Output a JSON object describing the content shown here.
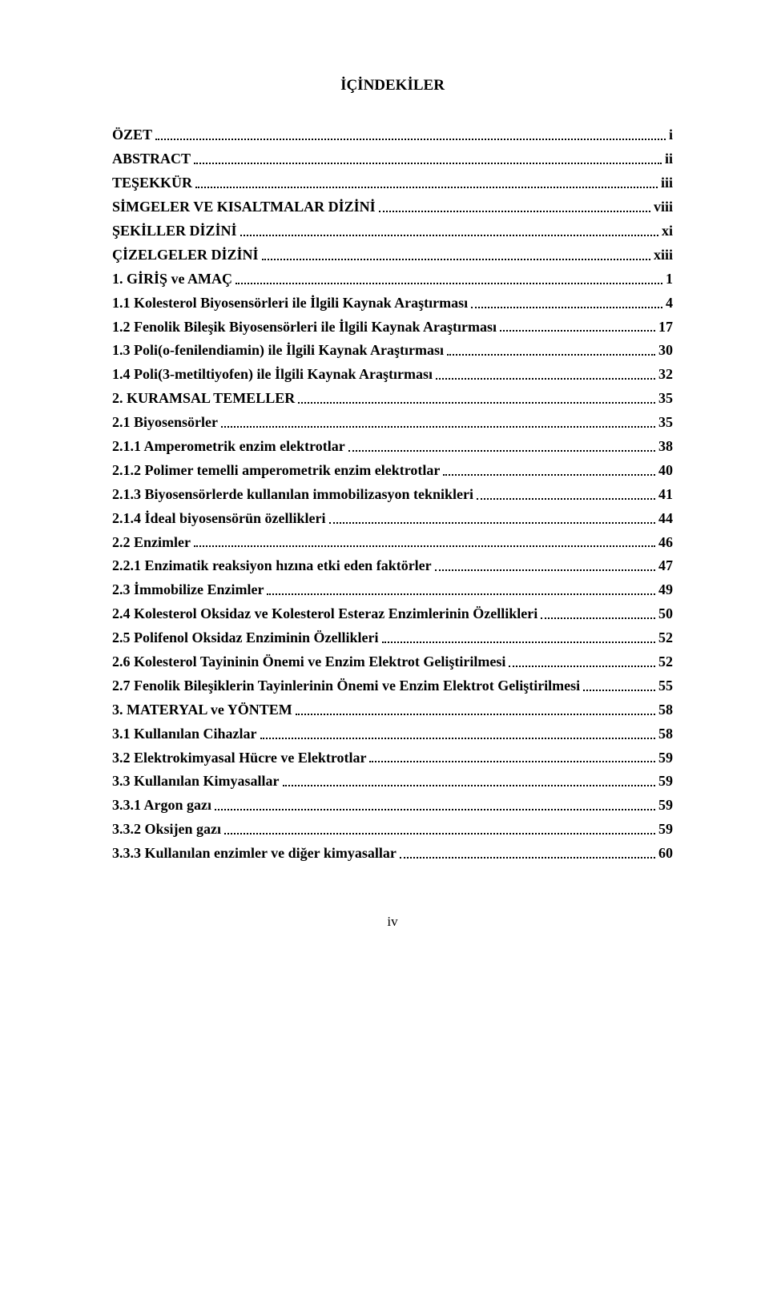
{
  "title": "İÇİNDEKİLER",
  "entries": [
    {
      "label": "ÖZET",
      "page": "i"
    },
    {
      "label": "ABSTRACT",
      "page": "ii"
    },
    {
      "label": "TEŞEKKÜR",
      "page": "iii"
    },
    {
      "label": "SİMGELER VE KISALTMALAR DİZİNİ",
      "page": "viii"
    },
    {
      "label": "ŞEKİLLER DİZİNİ",
      "page": "xi"
    },
    {
      "label": "ÇİZELGELER DİZİNİ",
      "page": "xiii"
    },
    {
      "label": "1. GİRİŞ ve AMAÇ",
      "page": "1"
    },
    {
      "label": "1.1 Kolesterol Biyosensörleri ile İlgili Kaynak Araştırması",
      "page": "4"
    },
    {
      "label": "1.2 Fenolik Bileşik Biyosensörleri ile İlgili Kaynak Araştırması",
      "page": "17"
    },
    {
      "label": "1.3 Poli(o-fenilendiamin) ile İlgili Kaynak Araştırması",
      "page": "30"
    },
    {
      "label": "1.4 Poli(3-metiltiyofen) ile İlgili Kaynak Araştırması",
      "page": "32"
    },
    {
      "label": "2. KURAMSAL TEMELLER",
      "page": "35"
    },
    {
      "label": "2.1 Biyosensörler",
      "page": "35"
    },
    {
      "label": "2.1.1 Amperometrik enzim elektrotlar",
      "page": "38"
    },
    {
      "label": "2.1.2 Polimer temelli amperometrik enzim elektrotlar",
      "page": "40"
    },
    {
      "label": "2.1.3 Biyosensörlerde kullanılan immobilizasyon teknikleri",
      "page": "41"
    },
    {
      "label": "2.1.4 İdeal biyosensörün özellikleri",
      "page": "44"
    },
    {
      "label": "2.2 Enzimler",
      "page": "46"
    },
    {
      "label": "2.2.1 Enzimatik reaksiyon hızına etki eden faktörler",
      "page": "47"
    },
    {
      "label": "2.3 İmmobilize Enzimler",
      "page": "49"
    },
    {
      "label": "2.4 Kolesterol Oksidaz ve Kolesterol Esteraz Enzimlerinin Özellikleri",
      "page": "50"
    },
    {
      "label": "2.5 Polifenol Oksidaz Enziminin Özellikleri",
      "page": "52"
    },
    {
      "label": "2.6 Kolesterol Tayininin Önemi ve Enzim Elektrot Geliştirilmesi",
      "page": "52"
    },
    {
      "label": "2.7 Fenolik Bileşiklerin Tayinlerinin Önemi ve Enzim Elektrot Geliştirilmesi",
      "page": "55"
    },
    {
      "label": "3. MATERYAL ve YÖNTEM",
      "page": "58"
    },
    {
      "label": "3.1 Kullanılan Cihazlar",
      "page": "58"
    },
    {
      "label": "3.2 Elektrokimyasal Hücre ve Elektrotlar",
      "page": "59"
    },
    {
      "label": "3.3 Kullanılan Kimyasallar",
      "page": "59"
    },
    {
      "label": "3.3.1 Argon gazı",
      "page": "59"
    },
    {
      "label": "3.3.2 Oksijen gazı",
      "page": "59"
    },
    {
      "label": "3.3.3 Kullanılan enzimler ve diğer kimyasallar",
      "page": "60"
    }
  ],
  "footerPage": "iv"
}
